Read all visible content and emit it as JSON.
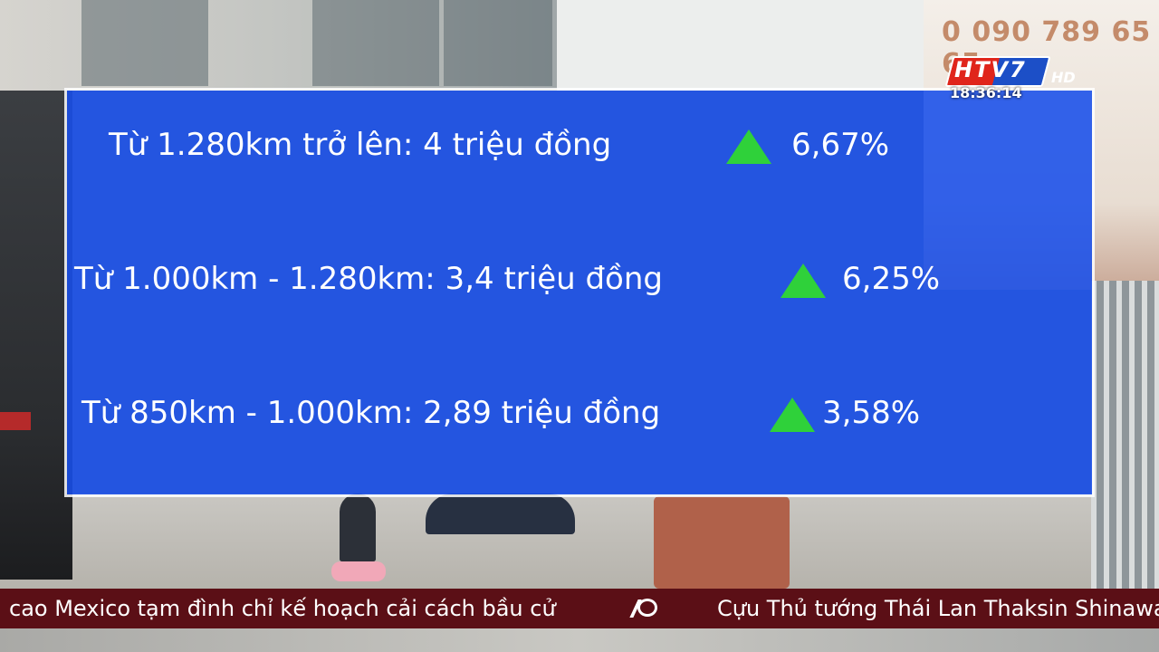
{
  "background": {
    "phone_sign": "0 090 789 65 65"
  },
  "panel": {
    "rows": [
      {
        "text": "Từ 1.280km trở lên: 4 triệu đồng",
        "percent": "6,67%"
      },
      {
        "text": "Từ 1.000km -  1.280km: 3,4 triệu đồng",
        "percent": "6,25%"
      },
      {
        "text": "Từ 850km - 1.000km: 2,89 triệu đồng",
        "percent": "3,58%"
      }
    ],
    "arrow_icon": "up-triangle-icon",
    "colors": {
      "panel": "#184eeb",
      "arrow": "#2fd13a"
    }
  },
  "station": {
    "logo": "HTV7",
    "hd": "HD",
    "clock": "18:36:14"
  },
  "ticker": {
    "left": "cao Mexico tạm đình chỉ kế hoạch cải cách bầu cử",
    "right": "Cựu Thủ tướng Thái Lan Thaksin Shinawa",
    "background": "#5b0f16"
  }
}
